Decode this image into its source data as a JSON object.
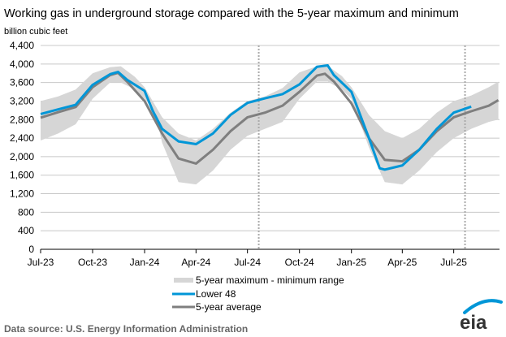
{
  "chart_data": {
    "type": "area",
    "title": "Working gas in underground  storage compared with the 5-year maximum and minimum",
    "ylabel": "billion cubic feet",
    "xlabel": "",
    "ylim": [
      0,
      4400
    ],
    "yticks": [
      0,
      400,
      800,
      1200,
      1600,
      2000,
      2400,
      2800,
      3200,
      3600,
      4000,
      4400
    ],
    "ytick_labels": [
      "0",
      "400",
      "800",
      "1,200",
      "1,600",
      "2,000",
      "2,400",
      "2,800",
      "3,200",
      "3,600",
      "4,000",
      "4,400"
    ],
    "xlim": [
      "2023-07-01",
      "2025-09-20"
    ],
    "xticks": [
      "2023-07-01",
      "2023-10-01",
      "2024-01-01",
      "2024-04-01",
      "2024-07-01",
      "2024-10-01",
      "2025-01-01",
      "2025-04-01",
      "2025-07-01"
    ],
    "xtick_labels": [
      "Jul-23",
      "Oct-23",
      "Jan-24",
      "Apr-24",
      "Jul-24",
      "Oct-24",
      "Jan-25",
      "Apr-25",
      "Jul-25"
    ],
    "markers": [
      "2024-07-21",
      "2025-07-21"
    ],
    "grid": true,
    "legend_placement": "bottom",
    "colors": {
      "range": "#d6d6d6",
      "lower48": "#0096d7",
      "average": "#7f7f7f",
      "grid": "#c8c8c8"
    },
    "range": {
      "name": "5-year maximum - minimum range",
      "x": [
        "2023-07-01",
        "2023-08-01",
        "2023-09-01",
        "2023-10-01",
        "2023-11-01",
        "2023-11-20",
        "2023-12-15",
        "2024-01-01",
        "2024-01-20",
        "2024-02-01",
        "2024-03-01",
        "2024-04-01",
        "2024-05-01",
        "2024-06-01",
        "2024-07-01",
        "2024-08-01",
        "2024-09-01",
        "2024-10-01",
        "2024-11-01",
        "2024-11-20",
        "2024-12-15",
        "2025-01-01",
        "2025-02-01",
        "2025-03-01",
        "2025-04-01",
        "2025-05-01",
        "2025-06-01",
        "2025-07-01",
        "2025-08-01",
        "2025-09-01",
        "2025-09-18"
      ],
      "max": [
        3200,
        3300,
        3450,
        3800,
        3930,
        3950,
        3720,
        3500,
        3100,
        2850,
        2500,
        2350,
        2600,
        2950,
        3200,
        3300,
        3480,
        3820,
        3950,
        3960,
        3740,
        3500,
        2900,
        2550,
        2400,
        2600,
        2950,
        3200,
        3320,
        3500,
        3620
      ],
      "min": [
        2350,
        2500,
        2700,
        3250,
        3600,
        3600,
        3450,
        3250,
        2950,
        2300,
        1450,
        1400,
        1700,
        2150,
        2450,
        2600,
        2750,
        3250,
        3620,
        3620,
        3450,
        3250,
        2200,
        1450,
        1400,
        1700,
        2100,
        2400,
        2600,
        2750,
        2800
      ]
    },
    "series": [
      {
        "name": "Lower 48",
        "x": [
          "2023-07-01",
          "2023-08-01",
          "2023-09-01",
          "2023-10-01",
          "2023-11-01",
          "2023-11-15",
          "2023-12-01",
          "2024-01-01",
          "2024-01-15",
          "2024-02-01",
          "2024-03-01",
          "2024-04-01",
          "2024-05-01",
          "2024-06-01",
          "2024-07-01",
          "2024-08-01",
          "2024-09-01",
          "2024-10-01",
          "2024-11-01",
          "2024-11-20",
          "2024-12-01",
          "2025-01-01",
          "2025-02-01",
          "2025-02-20",
          "2025-03-01",
          "2025-04-01",
          "2025-05-01",
          "2025-06-01",
          "2025-07-01",
          "2025-08-01"
        ],
        "values": [
          2920,
          3020,
          3120,
          3550,
          3780,
          3830,
          3660,
          3420,
          3000,
          2600,
          2330,
          2270,
          2500,
          2900,
          3160,
          3260,
          3350,
          3560,
          3940,
          3970,
          3760,
          3400,
          2400,
          1750,
          1720,
          1810,
          2150,
          2600,
          2950,
          3080
        ]
      },
      {
        "name": "5-year average",
        "x": [
          "2023-07-01",
          "2023-08-01",
          "2023-09-01",
          "2023-10-01",
          "2023-11-01",
          "2023-11-15",
          "2023-12-01",
          "2024-01-01",
          "2024-02-01",
          "2024-03-01",
          "2024-04-01",
          "2024-05-01",
          "2024-06-01",
          "2024-07-01",
          "2024-08-01",
          "2024-09-01",
          "2024-10-01",
          "2024-11-01",
          "2024-11-15",
          "2024-12-01",
          "2025-01-01",
          "2025-02-01",
          "2025-03-01",
          "2025-04-01",
          "2025-05-01",
          "2025-06-01",
          "2025-07-01",
          "2025-08-01",
          "2025-09-01",
          "2025-09-18"
        ],
        "values": [
          2840,
          2960,
          3070,
          3500,
          3760,
          3810,
          3620,
          3200,
          2500,
          1960,
          1850,
          2150,
          2550,
          2850,
          2950,
          3100,
          3400,
          3750,
          3790,
          3620,
          3150,
          2400,
          1930,
          1900,
          2150,
          2550,
          2850,
          2980,
          3100,
          3220
        ]
      }
    ]
  },
  "footer": {
    "source": "Data source:  U.S. Energy Information Administration",
    "logo_text": "eia"
  }
}
